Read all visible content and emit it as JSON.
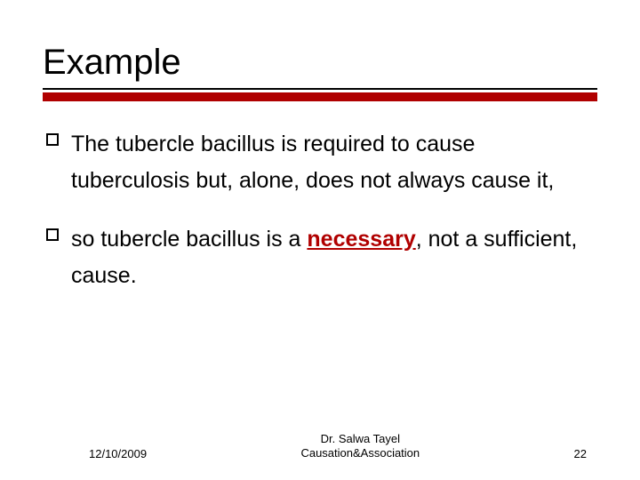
{
  "title": "Example",
  "accent_color": "#b00000",
  "text_color": "#000000",
  "background_color": "#ffffff",
  "title_fontsize": 40,
  "body_fontsize": 25,
  "footer_fontsize": 13,
  "bullets": [
    {
      "pre": "The tubercle bacillus is required to cause tuberculosis but, alone, does not always cause it,",
      "emph": "",
      "post": ""
    },
    {
      "pre": "so tubercle bacillus is a ",
      "emph": "necessary",
      "post": ", not a sufficient, cause."
    }
  ],
  "footer": {
    "date": "12/10/2009",
    "author_line1": "Dr. Salwa Tayel",
    "author_line2": "Causation&Association",
    "page": "22"
  }
}
